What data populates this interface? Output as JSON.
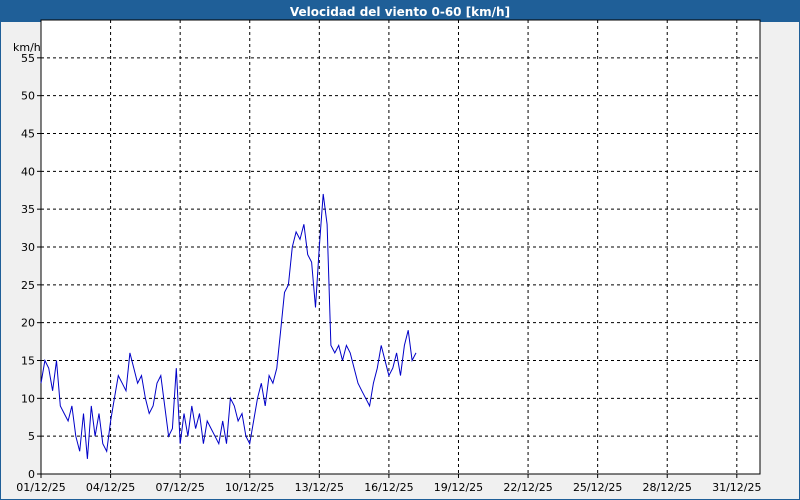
{
  "window": {
    "title": "Velocidad del viento 0-60 [km/h]"
  },
  "colors": {
    "titlebar": "#1f5f98",
    "line": "#0000c8",
    "grid": "#000000",
    "plot_bg": "#ffffff",
    "page_bg": "#f0f0f0"
  },
  "chart_data": {
    "type": "line",
    "title": "Velocidad del viento 0-60 [km/h]",
    "ylabel": "km/h",
    "xlabel": "",
    "xlim": [
      "2025-12-01",
      "2026-01-01"
    ],
    "ylim": [
      0,
      60
    ],
    "grid": true,
    "x_ticks": [
      "01/12/25",
      "04/12/25",
      "07/12/25",
      "10/12/25",
      "13/12/25",
      "16/12/25",
      "19/12/25",
      "22/12/25",
      "25/12/25",
      "28/12/25",
      "31/12/25"
    ],
    "y_ticks": [
      "0",
      "5",
      "10",
      "15",
      "20",
      "25",
      "30",
      "35",
      "40",
      "45",
      "50",
      "55"
    ],
    "series": [
      {
        "x": [
          "2025-12-01 00:00",
          "2025-12-01 04:00",
          "2025-12-01 08:00",
          "2025-12-01 12:00",
          "2025-12-01 16:00",
          "2025-12-01 20:00",
          "2025-12-02 00:00",
          "2025-12-02 04:00",
          "2025-12-02 08:00",
          "2025-12-02 12:00",
          "2025-12-02 16:00",
          "2025-12-02 20:00",
          "2025-12-03 00:00",
          "2025-12-03 04:00",
          "2025-12-03 08:00",
          "2025-12-03 12:00",
          "2025-12-03 16:00",
          "2025-12-03 20:00",
          "2025-12-04 00:00",
          "2025-12-04 04:00",
          "2025-12-04 08:00",
          "2025-12-04 12:00",
          "2025-12-04 16:00",
          "2025-12-04 20:00",
          "2025-12-05 00:00",
          "2025-12-05 04:00",
          "2025-12-05 08:00",
          "2025-12-05 12:00",
          "2025-12-05 16:00",
          "2025-12-05 20:00",
          "2025-12-06 00:00",
          "2025-12-06 04:00",
          "2025-12-06 08:00",
          "2025-12-06 12:00",
          "2025-12-06 16:00",
          "2025-12-06 20:00",
          "2025-12-07 00:00",
          "2025-12-07 04:00",
          "2025-12-07 08:00",
          "2025-12-07 12:00",
          "2025-12-07 16:00",
          "2025-12-07 20:00",
          "2025-12-08 00:00",
          "2025-12-08 04:00",
          "2025-12-08 08:00",
          "2025-12-08 12:00",
          "2025-12-08 16:00",
          "2025-12-08 20:00",
          "2025-12-09 00:00",
          "2025-12-09 04:00",
          "2025-12-09 08:00",
          "2025-12-09 12:00",
          "2025-12-09 16:00",
          "2025-12-09 20:00",
          "2025-12-10 00:00",
          "2025-12-10 04:00",
          "2025-12-10 08:00",
          "2025-12-10 12:00",
          "2025-12-10 16:00",
          "2025-12-10 20:00",
          "2025-12-11 00:00",
          "2025-12-11 04:00",
          "2025-12-11 08:00",
          "2025-12-11 12:00",
          "2025-12-11 16:00",
          "2025-12-11 20:00",
          "2025-12-12 00:00",
          "2025-12-12 04:00",
          "2025-12-12 08:00",
          "2025-12-12 12:00",
          "2025-12-12 16:00",
          "2025-12-12 20:00",
          "2025-12-13 00:00",
          "2025-12-13 04:00",
          "2025-12-13 08:00",
          "2025-12-13 12:00",
          "2025-12-13 16:00",
          "2025-12-13 20:00",
          "2025-12-14 00:00",
          "2025-12-14 04:00",
          "2025-12-14 08:00",
          "2025-12-14 12:00",
          "2025-12-14 16:00",
          "2025-12-14 20:00",
          "2025-12-15 00:00",
          "2025-12-15 04:00",
          "2025-12-15 08:00",
          "2025-12-15 12:00",
          "2025-12-15 16:00",
          "2025-12-15 20:00",
          "2025-12-16 00:00",
          "2025-12-16 04:00",
          "2025-12-16 08:00",
          "2025-12-16 12:00",
          "2025-12-16 16:00",
          "2025-12-16 20:00",
          "2025-12-17 00:00",
          "2025-12-17 04:00"
        ],
        "values": [
          12,
          15,
          14,
          11,
          15,
          9,
          8,
          7,
          9,
          5,
          3,
          8,
          2,
          9,
          5,
          8,
          4,
          3,
          7,
          10,
          13,
          12,
          11,
          16,
          14,
          12,
          13,
          10,
          8,
          9,
          12,
          13,
          9,
          5,
          6,
          14,
          4,
          8,
          5,
          9,
          6,
          8,
          4,
          7,
          6,
          5,
          4,
          7,
          4,
          10,
          9,
          7,
          8,
          5,
          4,
          7,
          10,
          12,
          9,
          13,
          12,
          14,
          19,
          24,
          25,
          30,
          32,
          31,
          33,
          29,
          28,
          22,
          30,
          37,
          33,
          17,
          16,
          17,
          15,
          17,
          16,
          14,
          12,
          11,
          10,
          9,
          12,
          14,
          17,
          15,
          13,
          14,
          16,
          13,
          17,
          19,
          15,
          16
        ]
      }
    ]
  }
}
